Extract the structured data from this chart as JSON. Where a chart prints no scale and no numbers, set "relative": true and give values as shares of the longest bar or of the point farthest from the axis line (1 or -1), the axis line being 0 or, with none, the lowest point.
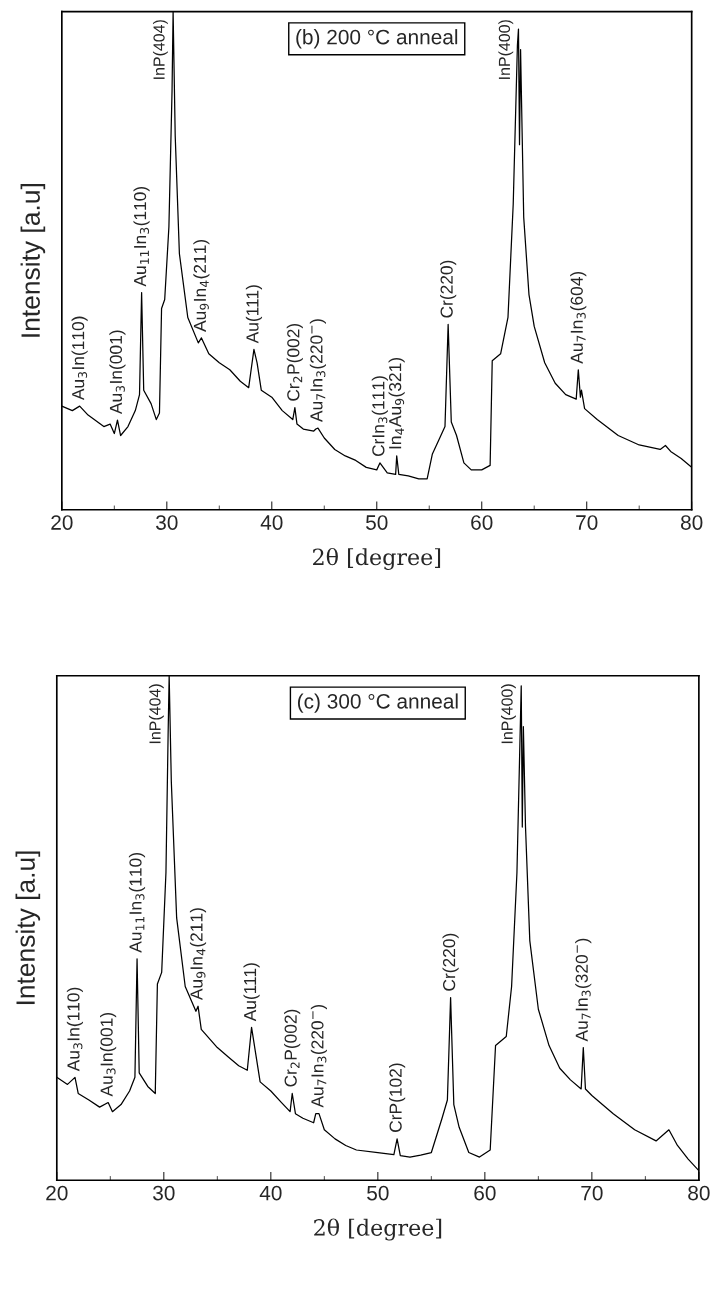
{
  "chart_data": [
    {
      "type": "line",
      "relative": true,
      "color": "#000000",
      "xlabel": "2θ [degree]",
      "ylabel": "Intensity [a.u]",
      "xlim": [
        20,
        80
      ],
      "xticks": [
        20,
        30,
        40,
        50,
        60,
        70,
        80
      ],
      "tick_labels": "x",
      "x": [
        20,
        21,
        21.7,
        22.5,
        24,
        24.6,
        25.0,
        25.3,
        25.6,
        26.3,
        27.0,
        27.4,
        27.6,
        27.8,
        28.5,
        29.0,
        29.3,
        29.5,
        29.8,
        30.2,
        30.5,
        30.6,
        30.8,
        31.2,
        32,
        33,
        33.3,
        34,
        35,
        36,
        37,
        37.8,
        38.0,
        38.3,
        38.6,
        39,
        40,
        41,
        42.0,
        42.2,
        42.4,
        43,
        44.0,
        44.2,
        44.4,
        45,
        46,
        47,
        48,
        49,
        50,
        50.3,
        51,
        51.8,
        51.9,
        52.1,
        53,
        54,
        54.8,
        55.3,
        56.0,
        56.5,
        56.8,
        57.1,
        57.6,
        58.3,
        59,
        60,
        60.8,
        61.0,
        61.8,
        62.5,
        63.0,
        63.4,
        63.5,
        63.6,
        63.7,
        64.0,
        64.5,
        65,
        66,
        67,
        68,
        69.0,
        69.2,
        69.4,
        69.5,
        69.8,
        71,
        73,
        75,
        77,
        77.5,
        78,
        79,
        80
      ],
      "values": [
        0.208,
        0.199,
        0.208,
        0.19,
        0.167,
        0.172,
        0.153,
        0.18,
        0.149,
        0.167,
        0.199,
        0.231,
        0.436,
        0.24,
        0.213,
        0.181,
        0.194,
        0.404,
        0.422,
        0.568,
        0.842,
        1.0,
        0.751,
        0.514,
        0.386,
        0.335,
        0.345,
        0.313,
        0.295,
        0.281,
        0.258,
        0.245,
        0.276,
        0.322,
        0.295,
        0.24,
        0.226,
        0.199,
        0.181,
        0.205,
        0.172,
        0.162,
        0.158,
        0.162,
        0.164,
        0.144,
        0.121,
        0.108,
        0.099,
        0.085,
        0.08,
        0.094,
        0.074,
        0.071,
        0.108,
        0.071,
        0.068,
        0.062,
        0.062,
        0.112,
        0.144,
        0.167,
        0.372,
        0.176,
        0.149,
        0.094,
        0.08,
        0.08,
        0.089,
        0.299,
        0.313,
        0.386,
        0.614,
        0.933,
        0.965,
        0.733,
        0.924,
        0.587,
        0.432,
        0.368,
        0.295,
        0.254,
        0.231,
        0.222,
        0.281,
        0.226,
        0.24,
        0.203,
        0.181,
        0.149,
        0.13,
        0.121,
        0.129,
        0.117,
        0.103,
        0.085
      ],
      "annotations": [
        "(b) 200 °C anneal",
        {
          "text": "Au$_{3}$In(110)",
          "x": 21.7,
          "y": 0.208
        },
        {
          "text": "Au$_{3}$In(001)",
          "x": 25.3,
          "y": 0.18
        },
        {
          "text": "Au$_{11}$In$_{3}$(110)",
          "x": 27.6,
          "y": 0.436
        },
        {
          "text": "InP(404)",
          "x": 30.6,
          "y": 1.0
        },
        {
          "text": "Au$_{9}$In$_{4}$(211)",
          "x": 33.3,
          "y": 0.345
        },
        {
          "text": "Au(111)",
          "x": 38.3,
          "y": 0.322
        },
        {
          "text": "Cr$_{2}$P(002)",
          "x": 42.2,
          "y": 0.205
        },
        {
          "text": "Au$_{7}$In$_{3}$(220$^{−}$)",
          "x": 44.4,
          "y": 0.164
        },
        {
          "text": "CrIn$_{3}$(111)",
          "x": 50.3,
          "y": 0.094
        },
        {
          "text": "In$_{4}$Au$_{9}$(321)",
          "x": 51.9,
          "y": 0.108
        },
        {
          "text": "Cr(220)",
          "x": 56.8,
          "y": 0.372
        },
        {
          "text": "InP(400)",
          "x": 63.5,
          "y": 0.965
        },
        {
          "text": "Au$_{7}$In$_{3}$(604)",
          "x": 69.2,
          "y": 0.281
        }
      ]
    },
    {
      "type": "line",
      "relative": true,
      "color": "#000000",
      "xlabel": "2θ [degree]",
      "ylabel": "Intensity [a.u]",
      "xlim": [
        20,
        80
      ],
      "xticks": [
        20,
        30,
        40,
        50,
        60,
        70,
        80
      ],
      "tick_labels": "x",
      "x": [
        20,
        21,
        21.7,
        22,
        23,
        24,
        24.8,
        25.2,
        26,
        26.8,
        27.3,
        27.5,
        27.7,
        28.5,
        29.2,
        29.4,
        29.8,
        30.2,
        30.4,
        30.5,
        30.7,
        31.2,
        32,
        33.0,
        33.2,
        33.5,
        35,
        36,
        37,
        37.8,
        38.2,
        38.6,
        39,
        40,
        41,
        41.8,
        42.0,
        42.3,
        43,
        44.0,
        44.2,
        44.5,
        45,
        46,
        47,
        48,
        50,
        51.5,
        51.8,
        52.1,
        53,
        54,
        55,
        56,
        56.5,
        56.8,
        57.1,
        57.6,
        58.5,
        59.5,
        60.5,
        61.0,
        61.5,
        62,
        62.5,
        63.0,
        63.4,
        63.5,
        63.6,
        63.8,
        64.2,
        65,
        66,
        67,
        68,
        69.0,
        69.2,
        69.4,
        70,
        72,
        74,
        76,
        77.2,
        78,
        79,
        80
      ],
      "values": [
        0.204,
        0.19,
        0.204,
        0.172,
        0.159,
        0.145,
        0.154,
        0.136,
        0.15,
        0.177,
        0.204,
        0.439,
        0.213,
        0.186,
        0.172,
        0.389,
        0.412,
        0.61,
        0.881,
        1.0,
        0.791,
        0.52,
        0.384,
        0.335,
        0.345,
        0.299,
        0.263,
        0.245,
        0.227,
        0.218,
        0.303,
        0.249,
        0.195,
        0.177,
        0.154,
        0.136,
        0.172,
        0.132,
        0.123,
        0.114,
        0.132,
        0.132,
        0.1,
        0.082,
        0.069,
        0.06,
        0.055,
        0.051,
        0.082,
        0.049,
        0.046,
        0.05,
        0.055,
        0.123,
        0.159,
        0.362,
        0.15,
        0.105,
        0.055,
        0.046,
        0.06,
        0.267,
        0.276,
        0.285,
        0.384,
        0.61,
        0.98,
        0.7,
        0.899,
        0.7,
        0.475,
        0.339,
        0.267,
        0.222,
        0.199,
        0.181,
        0.263,
        0.181,
        0.168,
        0.132,
        0.1,
        0.078,
        0.1,
        0.069,
        0.042,
        0.019
      ],
      "annotations": [
        "(c) 300 °C anneal",
        {
          "text": "Au$_{3}$In(110)",
          "x": 21.7,
          "y": 0.204
        },
        {
          "text": "Au$_{3}$In(001)",
          "x": 24.8,
          "y": 0.154
        },
        {
          "text": "Au$_{11}$In$_{3}$(110)",
          "x": 27.5,
          "y": 0.439
        },
        {
          "text": "InP(404)",
          "x": 30.5,
          "y": 1.0
        },
        {
          "text": "Au$_{9}$In$_{4}$(211)",
          "x": 33.2,
          "y": 0.345
        },
        {
          "text": "Au(111)",
          "x": 38.2,
          "y": 0.303
        },
        {
          "text": "Cr$_{2}$P(002)",
          "x": 42.0,
          "y": 0.172
        },
        {
          "text": "Au$_{7}$In$_{3}$(220$^{−}$)",
          "x": 44.5,
          "y": 0.132
        },
        {
          "text": "CrP(102)",
          "x": 51.8,
          "y": 0.082
        },
        {
          "text": "Cr(220)",
          "x": 56.8,
          "y": 0.362
        },
        {
          "text": "InP(400)",
          "x": 63.4,
          "y": 0.98
        },
        {
          "text": "Au$_{7}$In$_{3}$(320$^{−}$)",
          "x": 69.2,
          "y": 0.263
        }
      ]
    }
  ]
}
